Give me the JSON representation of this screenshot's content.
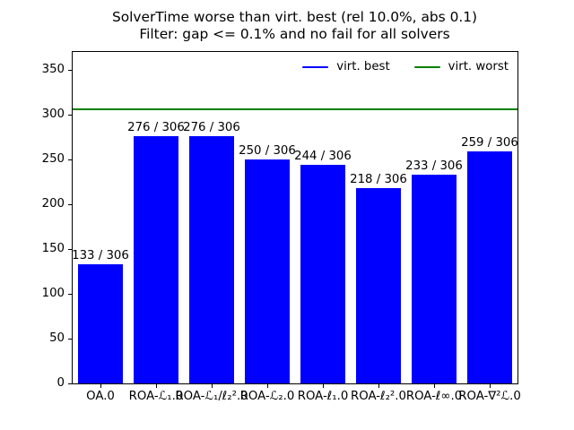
{
  "title": {
    "line1": "SolverTime worse than virt. best (rel 10.0%, abs 0.1)",
    "line2": "Filter: gap <= 0.1% and no fail for all solvers"
  },
  "legend": [
    {
      "label": "virt. best",
      "color": "#0000ff"
    },
    {
      "label": "virt. worst",
      "color": "#008000"
    }
  ],
  "chart_data": {
    "type": "bar",
    "title": "SolverTime worse than virt. best (rel 10.0%, abs 0.1)\nFilter: gap <= 0.1% and no fail for all solvers",
    "categories": [
      "OA.0",
      "ROA-ℒ₁.0",
      "ROA-ℒ₁/ℓ₂².0",
      "ROA-ℒ₂.0",
      "ROA-ℓ₁.0",
      "ROA-ℓ₂².0",
      "ROA-ℓ∞.0",
      "ROA-∇²ℒ.0"
    ],
    "values": [
      133,
      276,
      276,
      250,
      244,
      218,
      233,
      259
    ],
    "bar_labels": [
      "133 / 306",
      "276 / 306",
      "276 / 306",
      "250 / 306",
      "244 / 306",
      "218 / 306",
      "233 / 306",
      "259 / 306"
    ],
    "denominator": 306,
    "bar_color": "#0000ff",
    "hline": {
      "name": "virt. worst",
      "value": 306,
      "color": "#008000"
    },
    "xlabel": "",
    "ylabel": "",
    "ylim": [
      0,
      370
    ],
    "yticks": [
      0,
      50,
      100,
      150,
      200,
      250,
      300,
      350
    ],
    "legend_position": "upper right",
    "legend_frame": false,
    "grid": false
  }
}
